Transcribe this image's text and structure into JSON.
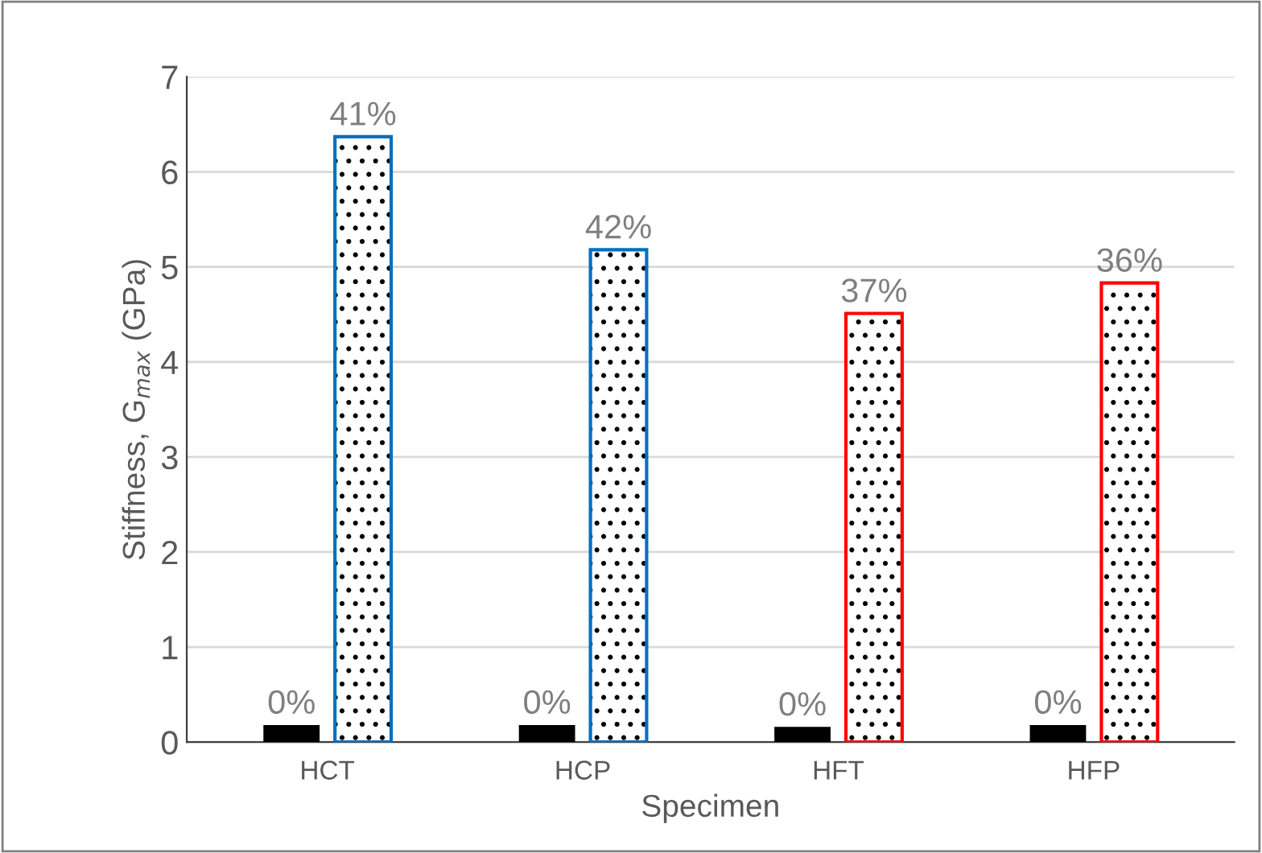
{
  "chart_data": {
    "type": "bar",
    "xlabel": "Specimen",
    "ylabel": "Stiffness, G$_{max}$ (GPa)",
    "categories": [
      "HCT",
      "HCP",
      "HFT",
      "HFP"
    ],
    "series": [
      {
        "color": "#000000",
        "values": [
          0.18,
          0.18,
          0.16,
          0.18
        ]
      },
      {
        "colors": [
          "#0070c0",
          "#0070c0",
          "#ff0000",
          "#ff0000"
        ],
        "values": [
          6.37,
          5.18,
          4.51,
          4.83
        ]
      }
    ],
    "annotations": [
      {
        "text": "0%",
        "x": "HCT",
        "y": 0.18
      },
      {
        "text": "0%",
        "x": "HCP",
        "y": 0.18
      },
      {
        "text": "0%",
        "x": "HFT",
        "y": 0.16
      },
      {
        "text": "0%",
        "x": "HFP",
        "y": 0.18
      },
      {
        "text": "41%",
        "x": "HCT",
        "y": 6.37
      },
      {
        "text": "42%",
        "x": "HCP",
        "y": 5.18
      },
      {
        "text": "37%",
        "x": "HFT",
        "y": 4.51
      },
      {
        "text": "36%",
        "x": "HFP",
        "y": 4.83
      }
    ],
    "ylim": [
      0,
      7
    ],
    "yticks": [
      0,
      1,
      2,
      3,
      4,
      5,
      6,
      7
    ],
    "grid": "y",
    "legend": false
  }
}
